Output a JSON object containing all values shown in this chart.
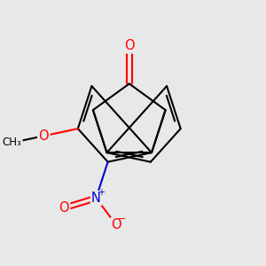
{
  "background_color": "#e8e8e8",
  "bond_color": "#000000",
  "bond_width": 1.5,
  "atom_colors": {
    "O": "#ff0000",
    "N": "#0000cc",
    "C": "#000000"
  },
  "figsize": [
    3.0,
    3.0
  ],
  "dpi": 100
}
